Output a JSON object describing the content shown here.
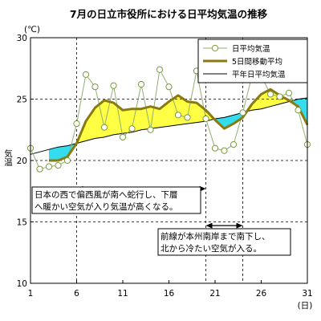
{
  "chart_data": {
    "type": "line",
    "title": "7月の日立市役所における日平均気温の推移",
    "ylabel": "気温",
    "yunit": "(℃)",
    "xunit": "(日)",
    "xlim": [
      1,
      31
    ],
    "ylim": [
      10,
      30
    ],
    "xticks": [
      1,
      6,
      11,
      16,
      21,
      26,
      31
    ],
    "yticks": [
      10,
      15,
      20,
      25,
      30
    ],
    "hgrid": [
      15,
      20,
      25
    ],
    "vgrid": [
      6,
      20,
      24
    ],
    "grid": "dashed",
    "legend_position": "top-right",
    "days": [
      1,
      2,
      3,
      4,
      5,
      6,
      7,
      8,
      9,
      10,
      11,
      12,
      13,
      14,
      15,
      16,
      17,
      18,
      19,
      20,
      21,
      22,
      23,
      24,
      25,
      26,
      27,
      28,
      29,
      30,
      31
    ],
    "series": [
      {
        "name": "日平均気温",
        "color": "#7a9a3a",
        "values": [
          21.0,
          19.3,
          19.5,
          19.6,
          20.0,
          23.0,
          27.0,
          26.0,
          22.7,
          26.1,
          21.9,
          22.6,
          26.2,
          22.5,
          27.4,
          26.0,
          23.7,
          23.5,
          27.3,
          23.4,
          21.0,
          20.8,
          21.3,
          23.9,
          26.9,
          26.9,
          25.4,
          25.2,
          25.5,
          24.1,
          21.3
        ]
      },
      {
        "name": "5日間移動平均",
        "color": "#8a7a10",
        "values": [
          null,
          null,
          20.0,
          20.0,
          20.3,
          21.4,
          23.2,
          24.3,
          24.9,
          24.7,
          24.1,
          24.2,
          24.2,
          24.4,
          24.2,
          24.8,
          25.3,
          24.8,
          24.7,
          24.1,
          23.3,
          22.6,
          23.0,
          23.5,
          24.6,
          25.4,
          25.8,
          25.3,
          24.9,
          24.4,
          22.9
        ]
      },
      {
        "name": "平年日平均気温",
        "color": "#000000",
        "values": [
          20.5,
          20.7,
          20.9,
          21.1,
          21.2,
          21.4,
          21.6,
          21.8,
          21.9,
          22.1,
          22.2,
          22.3,
          22.5,
          22.6,
          22.7,
          22.8,
          22.9,
          23.0,
          23.1,
          23.2,
          23.4,
          23.5,
          23.7,
          23.9,
          24.1,
          24.2,
          24.4,
          24.6,
          24.8,
          25.0,
          25.1
        ]
      }
    ],
    "fill_above_color": "#ffff44",
    "fill_below_color": "#33ddee",
    "annotations": [
      {
        "lines": [
          "日本の西で偏西風が南へ蛇行し、下層",
          "へ暖かい空気が入り気温が高くなる。"
        ],
        "arrow_from": 6,
        "arrow_to": 20,
        "arrow_y": 17.7
      },
      {
        "lines": [
          "前線が本州南岸まで南下し、",
          "北から冷たい空気が入る。"
        ],
        "arrow_from": 20,
        "arrow_to": 24,
        "arrow_y": 14.7
      }
    ]
  }
}
